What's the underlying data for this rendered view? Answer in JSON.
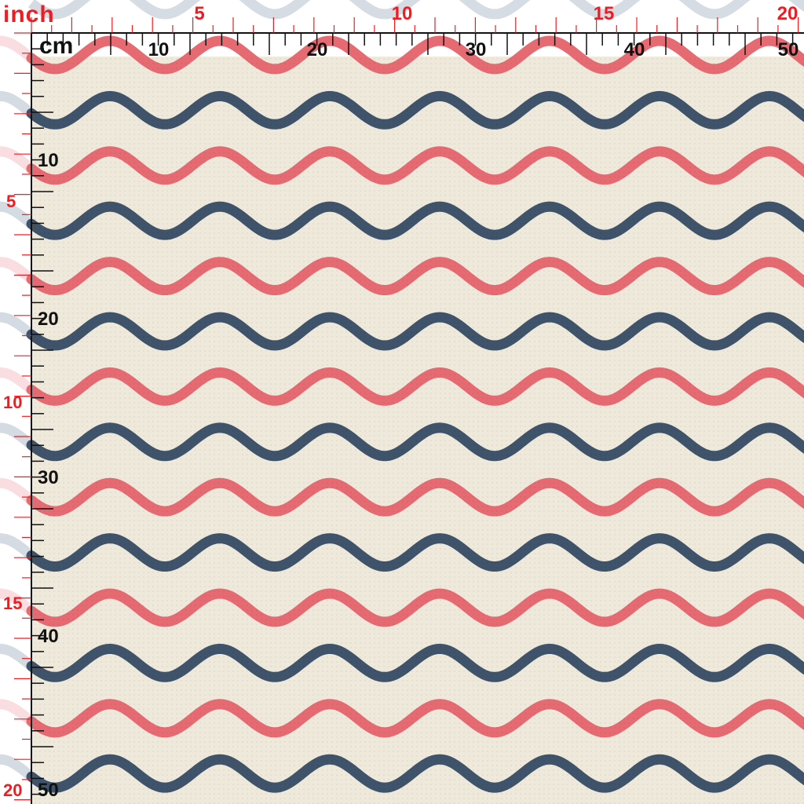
{
  "ruler": {
    "inch_title": "inch",
    "cm_title": "cm",
    "top_inch_labels": [
      "5",
      "10",
      "15",
      "20"
    ],
    "top_cm_labels": [
      "10",
      "20",
      "30",
      "40",
      "50"
    ],
    "left_cm_labels": [
      "10",
      "20",
      "30",
      "40",
      "50"
    ],
    "left_inch_labels": [
      "5",
      "10",
      "15",
      "20"
    ]
  },
  "colors": {
    "fabric_bg": "#efe9dc",
    "wave_navy": "#3f536b",
    "wave_coral": "#e66a72",
    "inch_marks": "#ee1d23",
    "cm_marks": "#111111"
  }
}
